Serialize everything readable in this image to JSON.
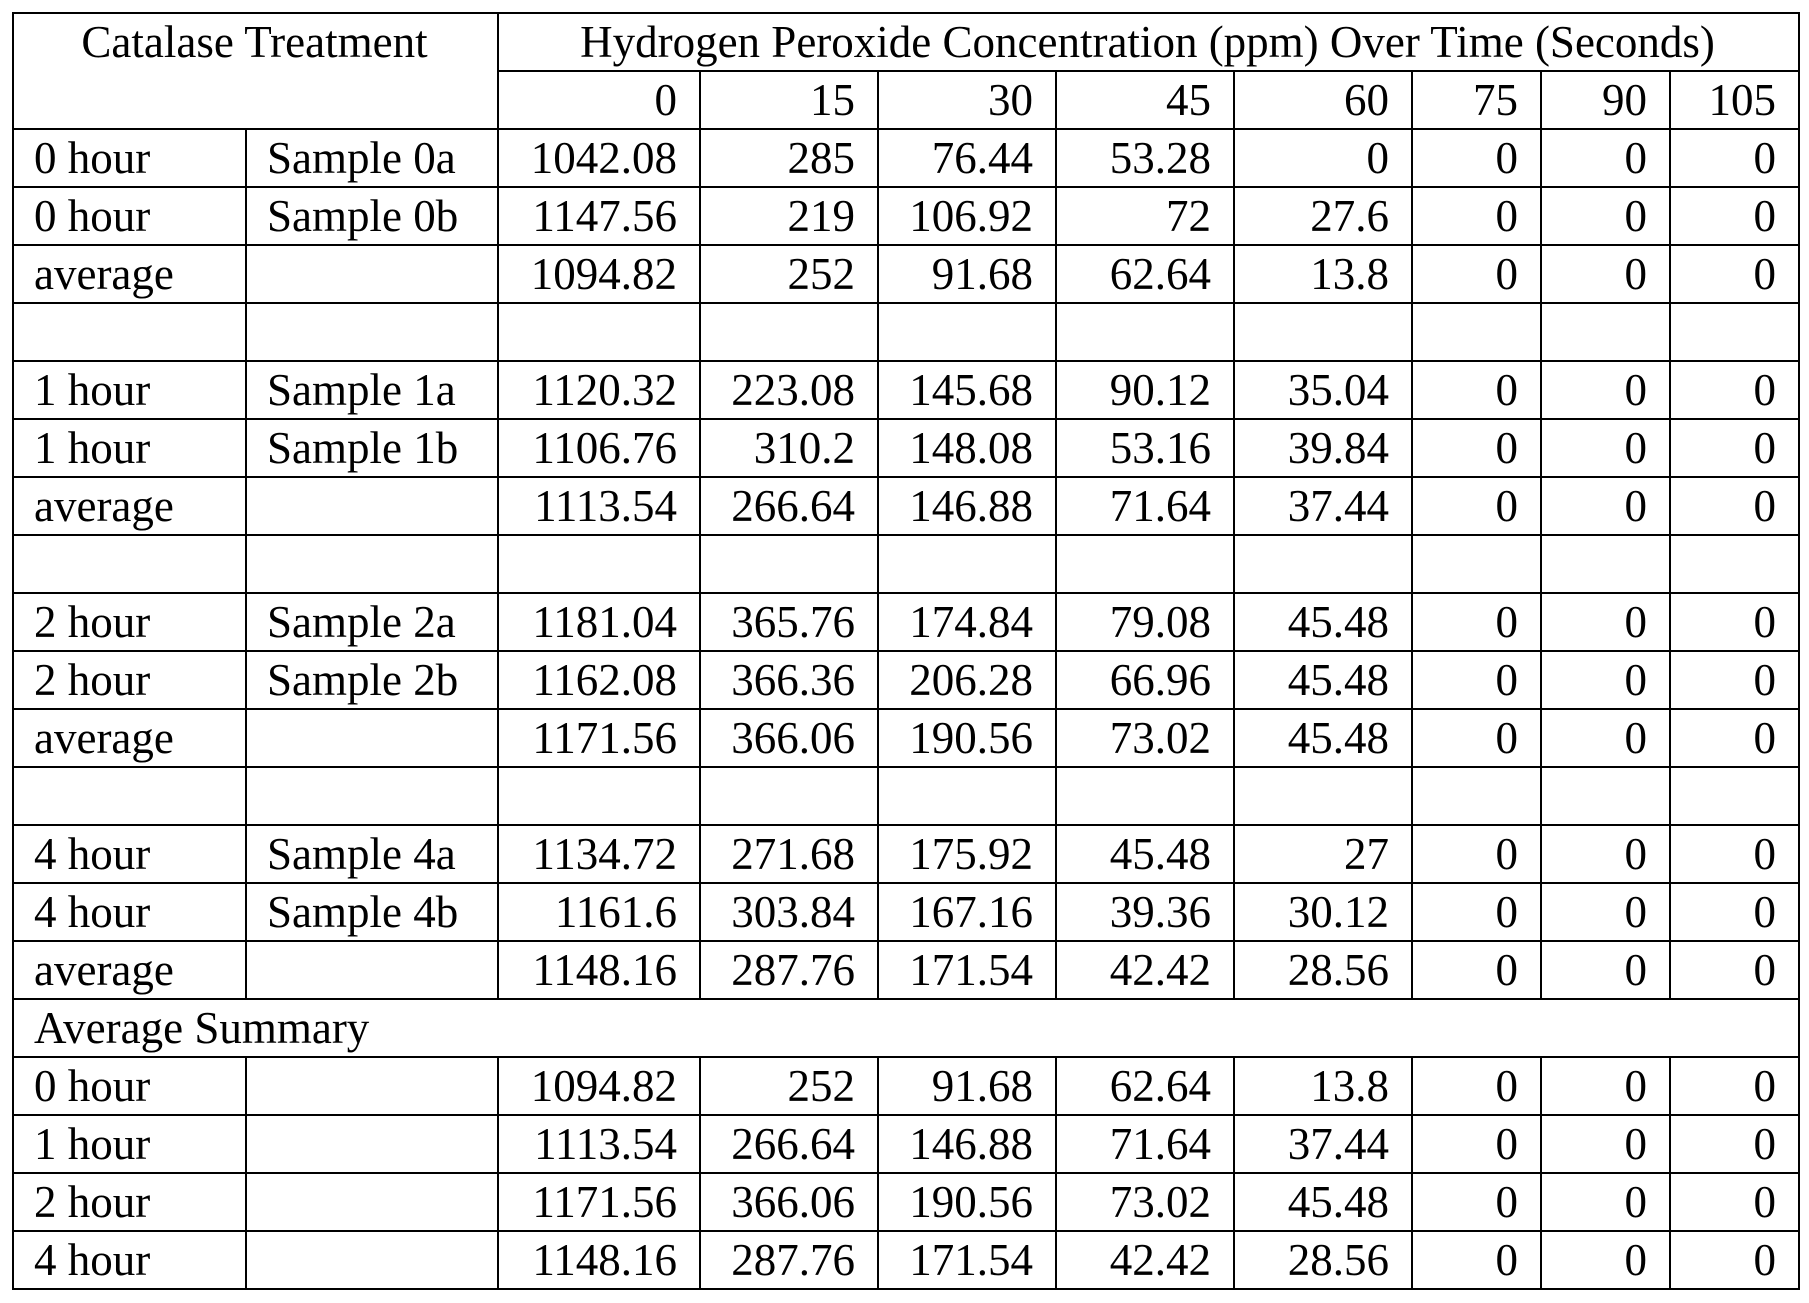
{
  "header": {
    "left_title": "Catalase Treatment",
    "right_title": "Hydrogen Peroxide Concentration (ppm) Over Time (Seconds)",
    "time_points": [
      "0",
      "15",
      "30",
      "45",
      "60",
      "75",
      "90",
      "105"
    ]
  },
  "groups": [
    {
      "rows": [
        {
          "treatment": "0 hour",
          "sample": "Sample 0a",
          "values": [
            "1042.08",
            "285",
            "76.44",
            "53.28",
            "0",
            "0",
            "0",
            "0"
          ]
        },
        {
          "treatment": "0 hour",
          "sample": "Sample 0b",
          "values": [
            "1147.56",
            "219",
            "106.92",
            "72",
            "27.6",
            "0",
            "0",
            "0"
          ]
        },
        {
          "treatment": "average",
          "sample": "",
          "values": [
            "1094.82",
            "252",
            "91.68",
            "62.64",
            "13.8",
            "0",
            "0",
            "0"
          ]
        }
      ]
    },
    {
      "rows": [
        {
          "treatment": "1 hour",
          "sample": "Sample 1a",
          "values": [
            "1120.32",
            "223.08",
            "145.68",
            "90.12",
            "35.04",
            "0",
            "0",
            "0"
          ]
        },
        {
          "treatment": "1 hour",
          "sample": "Sample 1b",
          "values": [
            "1106.76",
            "310.2",
            "148.08",
            "53.16",
            "39.84",
            "0",
            "0",
            "0"
          ]
        },
        {
          "treatment": "average",
          "sample": "",
          "values": [
            "1113.54",
            "266.64",
            "146.88",
            "71.64",
            "37.44",
            "0",
            "0",
            "0"
          ]
        }
      ]
    },
    {
      "rows": [
        {
          "treatment": "2 hour",
          "sample": "Sample 2a",
          "values": [
            "1181.04",
            "365.76",
            "174.84",
            "79.08",
            "45.48",
            "0",
            "0",
            "0"
          ]
        },
        {
          "treatment": "2 hour",
          "sample": "Sample 2b",
          "values": [
            "1162.08",
            "366.36",
            "206.28",
            "66.96",
            "45.48",
            "0",
            "0",
            "0"
          ]
        },
        {
          "treatment": "average",
          "sample": "",
          "values": [
            "1171.56",
            "366.06",
            "190.56",
            "73.02",
            "45.48",
            "0",
            "0",
            "0"
          ]
        }
      ]
    },
    {
      "rows": [
        {
          "treatment": "4 hour",
          "sample": "Sample 4a",
          "values": [
            "1134.72",
            "271.68",
            "175.92",
            "45.48",
            "27",
            "0",
            "0",
            "0"
          ]
        },
        {
          "treatment": "4 hour",
          "sample": "Sample 4b",
          "values": [
            "1161.6",
            "303.84",
            "167.16",
            "39.36",
            "30.12",
            "0",
            "0",
            "0"
          ]
        },
        {
          "treatment": "average",
          "sample": "",
          "values": [
            "1148.16",
            "287.76",
            "171.54",
            "42.42",
            "28.56",
            "0",
            "0",
            "0"
          ]
        }
      ]
    }
  ],
  "summary": {
    "title": "Average Summary",
    "rows": [
      {
        "treatment": "0 hour",
        "sample": "",
        "values": [
          "1094.82",
          "252",
          "91.68",
          "62.64",
          "13.8",
          "0",
          "0",
          "0"
        ]
      },
      {
        "treatment": "1 hour",
        "sample": "",
        "values": [
          "1113.54",
          "266.64",
          "146.88",
          "71.64",
          "37.44",
          "0",
          "0",
          "0"
        ]
      },
      {
        "treatment": "2 hour",
        "sample": "",
        "values": [
          "1171.56",
          "366.06",
          "190.56",
          "73.02",
          "45.48",
          "0",
          "0",
          "0"
        ]
      },
      {
        "treatment": "4 hour",
        "sample": "",
        "values": [
          "1148.16",
          "287.76",
          "171.54",
          "42.42",
          "28.56",
          "0",
          "0",
          "0"
        ]
      }
    ]
  }
}
